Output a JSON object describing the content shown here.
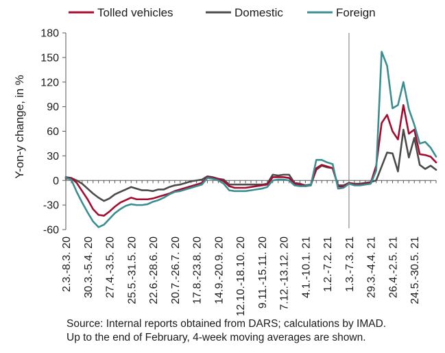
{
  "chart_data": {
    "type": "line",
    "ylabel": "Y-on-y change, in %",
    "ylim": [
      -60,
      180
    ],
    "yticks": [
      -60,
      -30,
      0,
      30,
      60,
      90,
      120,
      150,
      180
    ],
    "tick_labels": [
      "2.3.-8.3. 20",
      "30.3.-5.4. 20",
      "27.4.-3.5. 20",
      "25.5.-31.5. 20",
      "22.6.-28.6. 20",
      "20.7.-26.7. 20",
      "17.8.-23.8. 20",
      "14.9.-20.9. 20",
      "12.10.-18.10. 20",
      "9.11.-15.11. 20",
      "7.12.-13.12. 20",
      "4.1.-10.1. 21",
      "1.2.-7.2. 21",
      "1.3.-7.3. 21",
      "29.3.-4.4. 21",
      "26.4.-2.5. 21",
      "24.5.-30.5. 21"
    ],
    "tick_label_weeks": [
      0,
      4,
      8,
      12,
      16,
      20,
      24,
      28,
      32,
      36,
      40,
      44,
      48,
      52,
      56,
      60,
      64
    ],
    "legend_position": "top",
    "grid": false,
    "annotations": [
      "vertical line at week of 1.3.-7.3. 21"
    ],
    "series": [
      {
        "name": "Tolled vehicles",
        "color": "#a50b2e",
        "values": [
          2,
          3,
          -3,
          -13,
          -23,
          -35,
          -42,
          -43,
          -38,
          -32,
          -27,
          -24,
          -21,
          -23,
          -23,
          -23,
          -22,
          -20,
          -18,
          -16,
          -13,
          -11,
          -9,
          -7,
          -5,
          -3,
          4,
          3,
          2,
          -1,
          -7,
          -9,
          -9,
          -9,
          -8,
          -7,
          -6,
          -5,
          4,
          4,
          4,
          3,
          -4,
          -5,
          -7,
          -6,
          15,
          19,
          17,
          15,
          -7,
          -8,
          -3,
          -5,
          -5,
          -4,
          -3,
          18,
          70,
          80,
          60,
          50,
          92,
          57,
          62,
          32,
          31,
          29,
          22
        ]
      },
      {
        "name": "Domestic",
        "color": "#4a4a4a",
        "values": [
          4,
          3,
          0,
          -4,
          -10,
          -16,
          -21,
          -25,
          -22,
          -17,
          -14,
          -11,
          -8,
          -10,
          -12,
          -12,
          -13,
          -11,
          -11,
          -8,
          -6,
          -5,
          -3,
          -1,
          0,
          1,
          5,
          4,
          2,
          1,
          -5,
          -5,
          -5,
          -5,
          -5,
          -5,
          -5,
          -4,
          7,
          6,
          7,
          7,
          -3,
          -4,
          -6,
          -5,
          13,
          18,
          16,
          15,
          -6,
          -6,
          -3,
          -4,
          -4,
          -3,
          -2,
          0,
          17,
          34,
          33,
          11,
          62,
          28,
          52,
          19,
          14,
          18,
          13
        ]
      },
      {
        "name": "Foreign",
        "color": "#3a8e92",
        "values": [
          3,
          1,
          -14,
          -27,
          -39,
          -50,
          -57,
          -54,
          -47,
          -40,
          -35,
          -31,
          -29,
          -30,
          -30,
          -29,
          -26,
          -24,
          -21,
          -17,
          -14,
          -13,
          -11,
          -9,
          -7,
          -5,
          3,
          2,
          0,
          -4,
          -12,
          -13,
          -13,
          -13,
          -12,
          -11,
          -10,
          -8,
          0,
          1,
          1,
          0,
          -6,
          -7,
          -7,
          -6,
          25,
          25,
          22,
          20,
          -10,
          -9,
          -4,
          -6,
          -6,
          -5,
          -4,
          12,
          157,
          140,
          88,
          92,
          120,
          87,
          68,
          45,
          47,
          40,
          29
        ]
      }
    ]
  },
  "source": {
    "line1": "Source: Internal reports obtained from DARS; calculations by IMAD.",
    "line2": "Up to the end of February, 4-week moving averages are shown."
  }
}
